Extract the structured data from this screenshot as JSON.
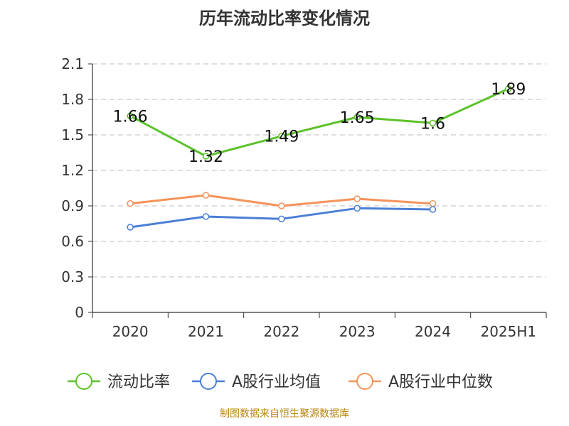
{
  "title": "历年流动比率变化情况",
  "source": "制图数据来自恒生聚源数据库",
  "chart_data": {
    "type": "line",
    "categories": [
      "2020",
      "2021",
      "2022",
      "2023",
      "2024",
      "2025H1"
    ],
    "ylim": [
      0,
      2.1
    ],
    "yticks": [
      "0",
      "0.3",
      "0.6",
      "0.9",
      "1.2",
      "1.5",
      "1.8",
      "2.1"
    ],
    "grid": true,
    "legend_position": "bottom",
    "series": [
      {
        "name": "流动比率",
        "color": "#5cc22a",
        "values": [
          1.66,
          1.32,
          1.49,
          1.65,
          1.6,
          1.89
        ],
        "labels": [
          "1.66",
          "1.32",
          "1.49",
          "1.65",
          "1.6",
          "1.89"
        ]
      },
      {
        "name": "A股行业均值",
        "color": "#4a7fd6",
        "values": [
          0.72,
          0.81,
          0.79,
          0.88,
          0.87,
          null
        ]
      },
      {
        "name": "A股行业中位数",
        "color": "#f5935a",
        "values": [
          0.92,
          0.99,
          0.9,
          0.96,
          0.92,
          null
        ]
      }
    ]
  }
}
